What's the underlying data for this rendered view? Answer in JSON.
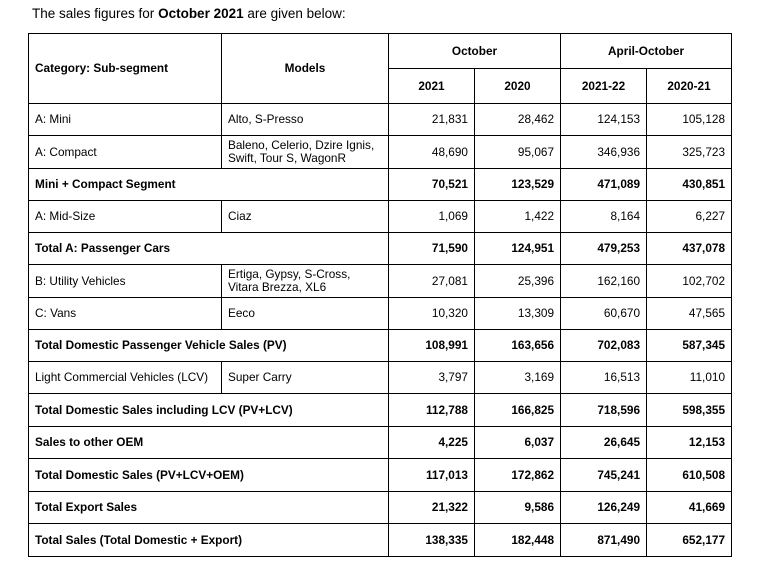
{
  "intro": {
    "before": "The sales figures for ",
    "bold": "October 2021",
    "after": " are given below:"
  },
  "headers": {
    "category": "Category: Sub-segment",
    "models": "Models",
    "group_october": "October",
    "group_april_october": "April-October",
    "col_2021": "2021",
    "col_2020": "2020",
    "col_2021_22": "2021-22",
    "col_2020_21": "2020-21"
  },
  "rows": [
    {
      "category": "A: Mini",
      "models": "Alto, S-Presso",
      "oct_2021": "21,831",
      "oct_2020": "28,462",
      "ytd_2021_22": "124,153",
      "ytd_2020_21": "105,128"
    },
    {
      "category": "A: Compact",
      "models": "Baleno, Celerio, Dzire Ignis, Swift, Tour S, WagonR",
      "oct_2021": "48,690",
      "oct_2020": "95,067",
      "ytd_2021_22": "346,936",
      "ytd_2020_21": "325,723"
    },
    {
      "category": "Mini + Compact Segment",
      "oct_2021": "70,521",
      "oct_2020": "123,529",
      "ytd_2021_22": "471,089",
      "ytd_2020_21": "430,851"
    },
    {
      "category": "A: Mid-Size",
      "models": "Ciaz",
      "oct_2021": "1,069",
      "oct_2020": "1,422",
      "ytd_2021_22": "8,164",
      "ytd_2020_21": "6,227"
    },
    {
      "category": "Total A: Passenger Cars",
      "oct_2021": "71,590",
      "oct_2020": "124,951",
      "ytd_2021_22": "479,253",
      "ytd_2020_21": "437,078"
    },
    {
      "category": "B: Utility Vehicles",
      "models": "Ertiga, Gypsy, S-Cross, Vitara Brezza, XL6",
      "oct_2021": "27,081",
      "oct_2020": "25,396",
      "ytd_2021_22": "162,160",
      "ytd_2020_21": "102,702"
    },
    {
      "category": "C: Vans",
      "models": "Eeco",
      "oct_2021": "10,320",
      "oct_2020": "13,309",
      "ytd_2021_22": "60,670",
      "ytd_2020_21": "47,565"
    },
    {
      "category": "Total Domestic Passenger Vehicle Sales (PV)",
      "oct_2021": "108,991",
      "oct_2020": "163,656",
      "ytd_2021_22": "702,083",
      "ytd_2020_21": "587,345"
    },
    {
      "category": "Light Commercial Vehicles (LCV)",
      "models": "Super Carry",
      "oct_2021": "3,797",
      "oct_2020": "3,169",
      "ytd_2021_22": "16,513",
      "ytd_2020_21": "11,010"
    },
    {
      "category": "Total Domestic Sales including LCV (PV+LCV)",
      "oct_2021": "112,788",
      "oct_2020": "166,825",
      "ytd_2021_22": "718,596",
      "ytd_2020_21": "598,355"
    },
    {
      "category": "Sales to other OEM",
      "oct_2021": "4,225",
      "oct_2020": "6,037",
      "ytd_2021_22": "26,645",
      "ytd_2020_21": "12,153"
    },
    {
      "category": "Total Domestic Sales (PV+LCV+OEM)",
      "oct_2021": "117,013",
      "oct_2020": "172,862",
      "ytd_2021_22": "745,241",
      "ytd_2020_21": "610,508"
    },
    {
      "category": "Total Export Sales",
      "oct_2021": "21,322",
      "oct_2020": "9,586",
      "ytd_2021_22": "126,249",
      "ytd_2020_21": "41,669"
    },
    {
      "category": "Total Sales (Total Domestic + Export)",
      "oct_2021": "138,335",
      "oct_2020": "182,448",
      "ytd_2021_22": "871,490",
      "ytd_2020_21": "652,177"
    }
  ]
}
